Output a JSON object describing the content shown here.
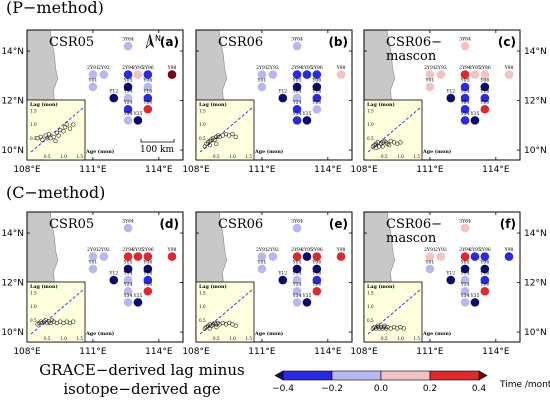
{
  "rows": [
    {
      "title": "(P−method)",
      "panels": [
        {
          "name": "CSR05",
          "tag": "(a)"
        },
        {
          "name": "CSR06",
          "tag": "(b)"
        },
        {
          "name": "CSR06−",
          "name2": "mascon",
          "tag": "(c)"
        }
      ]
    },
    {
      "title": "(C−method)",
      "panels": [
        {
          "name": "CSR05",
          "tag": "(d)"
        },
        {
          "name": "CSR06",
          "tag": "(e)"
        },
        {
          "name": "CSR06−",
          "name2": "mascon",
          "tag": "(f)"
        }
      ]
    }
  ],
  "lon_ticks": [
    "108°E",
    "111°E",
    "114°E"
  ],
  "lat_ticks": [
    "14°N",
    "12°N",
    "10°N"
  ],
  "north_label": "N",
  "scale_bar_label": "100 km",
  "inset": {
    "ylabel": "Lag (mon)",
    "xlabel": "Age (mon)",
    "yticks": [
      "1.5",
      "1.0",
      "0.5"
    ],
    "xticks": [
      "0.5",
      "1.0",
      "1.5"
    ]
  },
  "wells": [
    {
      "id": "3Y64",
      "lon": 112.6,
      "lat": 14.2
    },
    {
      "id": "2Y91",
      "lon": 111.0,
      "lat": 13.05
    },
    {
      "id": "2Y92",
      "lon": 111.5,
      "lat": 13.05
    },
    {
      "id": "2Y94",
      "lon": 112.6,
      "lat": 13.05
    },
    {
      "id": "2Y95",
      "lon": 113.05,
      "lat": 13.05
    },
    {
      "id": "2Y96",
      "lon": 113.5,
      "lat": 13.05
    },
    {
      "id": "Y98",
      "lon": 114.6,
      "lat": 13.05
    },
    {
      "id": "Y01",
      "lon": 111.0,
      "lat": 12.55
    },
    {
      "id": "Y05",
      "lon": 112.6,
      "lat": 12.55
    },
    {
      "id": "Y06",
      "lon": 113.5,
      "lat": 12.55
    },
    {
      "id": "Y12",
      "lon": 111.95,
      "lat": 12.1
    },
    {
      "id": "Y14",
      "lon": 112.6,
      "lat": 12.1
    },
    {
      "id": "Y16",
      "lon": 113.5,
      "lat": 12.1
    },
    {
      "id": "Y24",
      "lon": 112.6,
      "lat": 11.65
    },
    {
      "id": "Y26",
      "lon": 113.5,
      "lat": 11.65
    },
    {
      "id": "Y34",
      "lon": 112.6,
      "lat": 11.2
    },
    {
      "id": "Y35",
      "lon": 113.05,
      "lat": 11.2
    }
  ],
  "lag_minus_age_values": [
    [
      [
        -0.1,
        -0.1,
        -0.1,
        -0.3,
        0.1,
        -0.2,
        0.4,
        -0.1,
        -0.4,
        -0.1,
        -0.4,
        -0.1,
        -0.2,
        -0.2,
        0.3,
        -0.1,
        -0.4
      ],
      [
        -0.1,
        -0.1,
        -0.1,
        -0.2,
        -0.3,
        -0.3,
        0.1,
        -0.1,
        -0.4,
        -0.4,
        -0.4,
        -0.1,
        -0.2,
        -0.2,
        -0.1,
        -0.2,
        -0.4
      ],
      [
        0.1,
        0.1,
        0.1,
        0.3,
        0.1,
        0.1,
        0.1,
        0.1,
        -0.3,
        -0.4,
        -0.4,
        -0.2,
        -0.2,
        -0.2,
        0.3,
        -0.3,
        -0.4
      ]
    ],
    [
      [
        -0.1,
        -0.1,
        -0.1,
        0.3,
        0.3,
        0.3,
        0.3,
        -0.1,
        -0.4,
        -0.4,
        -0.4,
        -0.1,
        -0.2,
        -0.1,
        0.3,
        -0.1,
        -0.4
      ],
      [
        -0.1,
        -0.1,
        -0.1,
        0.3,
        -0.4,
        0.3,
        0.3,
        -0.1,
        -0.4,
        -0.4,
        -0.4,
        -0.1,
        -0.2,
        -0.1,
        0.3,
        -0.1,
        -0.4
      ],
      [
        0.1,
        0.1,
        0.1,
        0.3,
        -0.3,
        -0.3,
        -0.2,
        -0.1,
        -0.4,
        -0.4,
        -0.4,
        -0.1,
        -0.2,
        -0.1,
        0.3,
        -0.1,
        -0.4
      ]
    ]
  ],
  "inset_scatter": [
    [
      [
        [
          0.2,
          0.5
        ],
        [
          0.3,
          0.55
        ],
        [
          0.35,
          0.45
        ],
        [
          0.45,
          0.6
        ],
        [
          0.5,
          0.5
        ],
        [
          0.55,
          0.65
        ],
        [
          0.6,
          0.5
        ],
        [
          0.7,
          0.55
        ],
        [
          0.8,
          0.7
        ],
        [
          0.85,
          0.6
        ],
        [
          0.9,
          0.8
        ],
        [
          1.0,
          0.75
        ],
        [
          1.05,
          0.9
        ],
        [
          1.1,
          1.0
        ],
        [
          1.2,
          0.85
        ],
        [
          1.3,
          1.0
        ],
        [
          0.75,
          0.4
        ]
      ],
      [
        [
          0.15,
          0.2
        ],
        [
          0.2,
          0.3
        ],
        [
          0.25,
          0.35
        ],
        [
          0.3,
          0.4
        ],
        [
          0.35,
          0.45
        ],
        [
          0.4,
          0.5
        ],
        [
          0.45,
          0.45
        ],
        [
          0.5,
          0.55
        ],
        [
          0.55,
          0.6
        ],
        [
          0.6,
          0.55
        ],
        [
          0.7,
          0.6
        ],
        [
          0.8,
          0.65
        ],
        [
          0.9,
          0.6
        ],
        [
          1.0,
          0.65
        ],
        [
          1.1,
          0.55
        ],
        [
          0.3,
          0.25
        ],
        [
          0.5,
          0.3
        ]
      ],
      [
        [
          0.15,
          0.2
        ],
        [
          0.2,
          0.25
        ],
        [
          0.25,
          0.3
        ],
        [
          0.3,
          0.35
        ],
        [
          0.35,
          0.2
        ],
        [
          0.4,
          0.3
        ],
        [
          0.45,
          0.35
        ],
        [
          0.5,
          0.4
        ],
        [
          0.55,
          0.35
        ],
        [
          0.6,
          0.3
        ],
        [
          0.7,
          0.4
        ],
        [
          0.8,
          0.35
        ],
        [
          0.9,
          0.3
        ],
        [
          1.0,
          0.35
        ],
        [
          0.25,
          0.15
        ],
        [
          0.45,
          0.2
        ],
        [
          0.65,
          0.25
        ]
      ]
    ],
    [
      [
        [
          0.2,
          0.35
        ],
        [
          0.25,
          0.4
        ],
        [
          0.3,
          0.45
        ],
        [
          0.35,
          0.4
        ],
        [
          0.4,
          0.45
        ],
        [
          0.5,
          0.4
        ],
        [
          0.55,
          0.45
        ],
        [
          0.6,
          0.4
        ],
        [
          0.7,
          0.45
        ],
        [
          0.8,
          0.4
        ],
        [
          0.9,
          0.45
        ],
        [
          1.0,
          0.4
        ],
        [
          1.1,
          0.45
        ],
        [
          1.2,
          0.4
        ],
        [
          1.3,
          0.45
        ],
        [
          0.45,
          0.5
        ],
        [
          0.65,
          0.5
        ]
      ],
      [
        [
          0.15,
          0.2
        ],
        [
          0.2,
          0.25
        ],
        [
          0.25,
          0.3
        ],
        [
          0.3,
          0.35
        ],
        [
          0.35,
          0.3
        ],
        [
          0.4,
          0.35
        ],
        [
          0.45,
          0.4
        ],
        [
          0.5,
          0.35
        ],
        [
          0.55,
          0.4
        ],
        [
          0.6,
          0.35
        ],
        [
          0.7,
          0.4
        ],
        [
          0.8,
          0.35
        ],
        [
          0.9,
          0.4
        ],
        [
          1.0,
          0.35
        ],
        [
          1.1,
          0.3
        ],
        [
          0.3,
          0.2
        ],
        [
          0.5,
          0.25
        ]
      ],
      [
        [
          0.15,
          0.2
        ],
        [
          0.2,
          0.25
        ],
        [
          0.25,
          0.2
        ],
        [
          0.3,
          0.25
        ],
        [
          0.35,
          0.2
        ],
        [
          0.4,
          0.25
        ],
        [
          0.45,
          0.2
        ],
        [
          0.5,
          0.25
        ],
        [
          0.55,
          0.2
        ],
        [
          0.6,
          0.25
        ],
        [
          0.7,
          0.2
        ],
        [
          0.8,
          0.25
        ],
        [
          0.9,
          0.2
        ],
        [
          1.0,
          0.25
        ],
        [
          1.1,
          0.2
        ],
        [
          0.3,
          0.3
        ],
        [
          0.5,
          0.3
        ]
      ]
    ]
  ],
  "colorbar": {
    "title_line1": "GRACE−derived lag minus",
    "title_line2": "isotope−derived age",
    "unit": "Time /month",
    "ticks": [
      "−0.4",
      "−0.2",
      "0.0",
      "0.2",
      "0.4"
    ],
    "colors": [
      "#2a2ae6",
      "#b8b8f0",
      "#f4c2c2",
      "#e0282c"
    ],
    "left_arrow_color": "#0a0a6e",
    "right_arrow_color": "#7a0010"
  },
  "colors": {
    "land": "#c8c8c8",
    "inset_bg": "#ffffe0",
    "very_neg": "#0a0a6e",
    "neg": "#2a2ae6",
    "light_neg": "#b8b8f0",
    "light_pos": "#f4c2c2",
    "pos": "#e0282c",
    "very_pos": "#7a0010"
  }
}
